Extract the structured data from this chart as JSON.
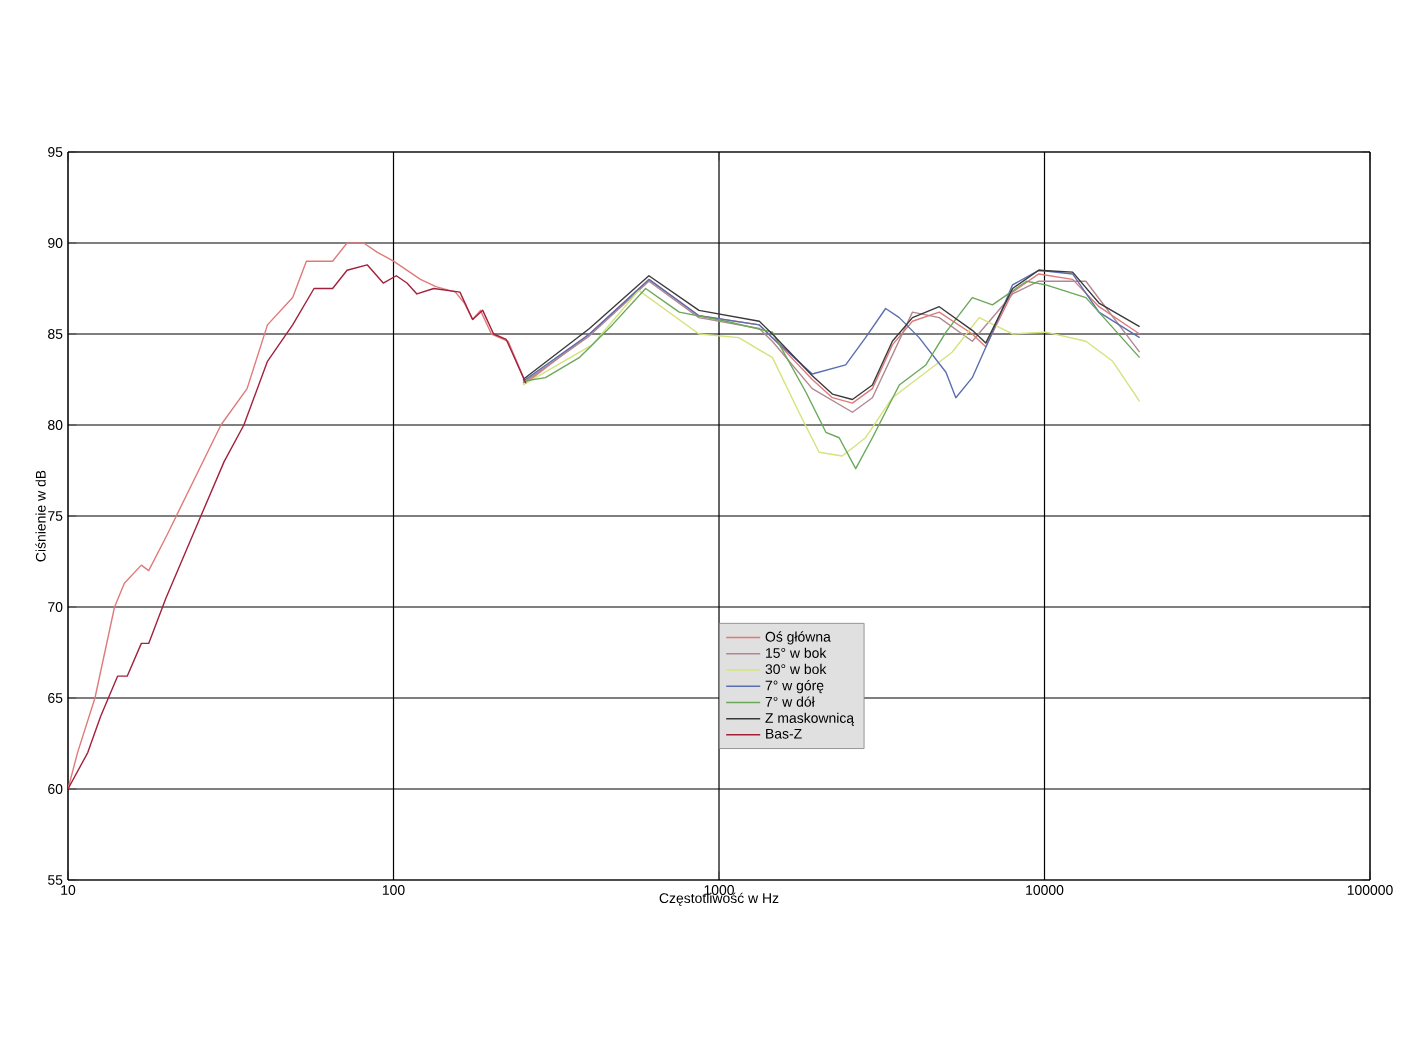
{
  "chart_data": {
    "type": "line",
    "xlabel": "Częstotliwość w Hz",
    "ylabel": "Ciśnienie w dB",
    "log": "x",
    "grid": true,
    "legend": "bottom",
    "xlim": [
      10,
      100000
    ],
    "xticks": [
      10,
      100,
      1000,
      10000,
      100000
    ],
    "ylim": [
      55,
      95
    ],
    "yticks": [
      55,
      60,
      65,
      70,
      75,
      80,
      85,
      90,
      95
    ],
    "series": [
      {
        "name": "Oś główna",
        "color": "#e07a7a",
        "x": [
          10,
          10.7,
          12.1,
          13.9,
          14.9,
          16.8,
          17.7,
          20.2,
          29.5,
          35.5,
          41,
          49,
          54,
          61,
          65,
          72,
          81,
          89,
          100,
          121,
          135,
          155,
          165,
          175,
          185,
          200,
          225,
          255,
          400,
          609,
          868,
          1330,
          1458,
          1935,
          2230,
          2570,
          2960,
          3410,
          3930,
          4750,
          6000,
          6600,
          7980,
          9600,
          12200,
          14700,
          19600
        ],
        "values": [
          60,
          62,
          65,
          70,
          71.3,
          72.3,
          72,
          74,
          80,
          82,
          85.5,
          87,
          89,
          89,
          89,
          90,
          90,
          89.5,
          89,
          88,
          87.6,
          87.3,
          86.7,
          85.8,
          86.3,
          85,
          84.6,
          82.3,
          85,
          88,
          86,
          85.5,
          84.8,
          82.5,
          81.5,
          81.2,
          82,
          84.4,
          85.7,
          86.2,
          85,
          84.3,
          87.3,
          88.3,
          88,
          86.5,
          85
        ]
      },
      {
        "name": "15° w bok",
        "color": "#b08890",
        "x": [
          250,
          400,
          609,
          868,
          1330,
          1458,
          1935,
          2570,
          2960,
          3930,
          4750,
          6000,
          7980,
          9600,
          13400,
          19600
        ],
        "values": [
          82.3,
          84.9,
          87.9,
          85.9,
          85.3,
          84.6,
          82,
          80.7,
          81.5,
          86.2,
          85.9,
          84.6,
          87.2,
          87.9,
          87.9,
          84
        ]
      },
      {
        "name": "30° w bok",
        "color": "#d4e37a",
        "x": [
          250,
          408,
          567,
          868,
          1150,
          1460,
          1760,
          2030,
          2390,
          2820,
          3410,
          4320,
          5200,
          6300,
          7980,
          10100,
          13400,
          16200,
          19600
        ],
        "values": [
          82.2,
          84.4,
          87.4,
          85,
          84.8,
          83.7,
          80.7,
          78.5,
          78.3,
          79.3,
          81.5,
          82.9,
          84,
          85.9,
          85,
          85.1,
          84.6,
          83.5,
          81.3
        ]
      },
      {
        "name": "7° w górę",
        "color": "#5a6fb0",
        "x": [
          250,
          400,
          609,
          868,
          1330,
          1458,
          1935,
          2450,
          2820,
          3250,
          3580,
          4120,
          4980,
          5340,
          6000,
          6920,
          7980,
          9600,
          12200,
          14700,
          19600
        ],
        "values": [
          82.4,
          85,
          88,
          86,
          85.5,
          84.8,
          82.8,
          83.3,
          84.8,
          86.4,
          85.9,
          84.8,
          82.9,
          81.5,
          82.6,
          85.1,
          87.7,
          88.5,
          88.3,
          86.2,
          84.8
        ]
      },
      {
        "name": "7° w dół",
        "color": "#6aa85a",
        "x": [
          250,
          293,
          372,
          470,
          595,
          755,
          1050,
          1460,
          1850,
          2130,
          2340,
          2630,
          2960,
          3580,
          4320,
          4980,
          6000,
          6920,
          8800,
          10100,
          13400,
          19600
        ],
        "values": [
          82.4,
          82.6,
          83.7,
          85.5,
          87.5,
          86.2,
          85.7,
          85.1,
          81.8,
          79.6,
          79.3,
          77.6,
          79.3,
          82.2,
          83.3,
          85.1,
          87,
          86.6,
          87.9,
          87.7,
          87,
          83.7
        ]
      },
      {
        "name": "Z maskownicą",
        "color": "#3a3a3a",
        "x": [
          250,
          400,
          609,
          868,
          1330,
          1458,
          1935,
          2230,
          2570,
          2960,
          3410,
          3930,
          4750,
          6000,
          6600,
          7980,
          9600,
          12200,
          14700,
          19600
        ],
        "values": [
          82.5,
          85.3,
          88.2,
          86.3,
          85.7,
          85,
          82.7,
          81.7,
          81.4,
          82.2,
          84.6,
          85.9,
          86.5,
          85.2,
          84.5,
          87.5,
          88.5,
          88.4,
          86.7,
          85.4
        ]
      },
      {
        "name": "Bas-Z",
        "color": "#a3203c",
        "x": [
          10,
          11.5,
          12.6,
          14.2,
          15.2,
          16.8,
          17.7,
          20,
          25.6,
          30.2,
          34.7,
          41,
          49,
          57,
          65,
          72,
          83,
          93,
          102,
          110,
          118,
          133,
          160,
          175,
          188,
          203,
          222,
          255
        ],
        "values": [
          60,
          62,
          64,
          66.2,
          66.2,
          68,
          68,
          70.5,
          75,
          78,
          80,
          83.5,
          85.5,
          87.5,
          87.5,
          88.5,
          88.8,
          87.8,
          88.2,
          87.8,
          87.2,
          87.5,
          87.3,
          85.8,
          86.3,
          85,
          84.7,
          82.3
        ]
      }
    ]
  }
}
